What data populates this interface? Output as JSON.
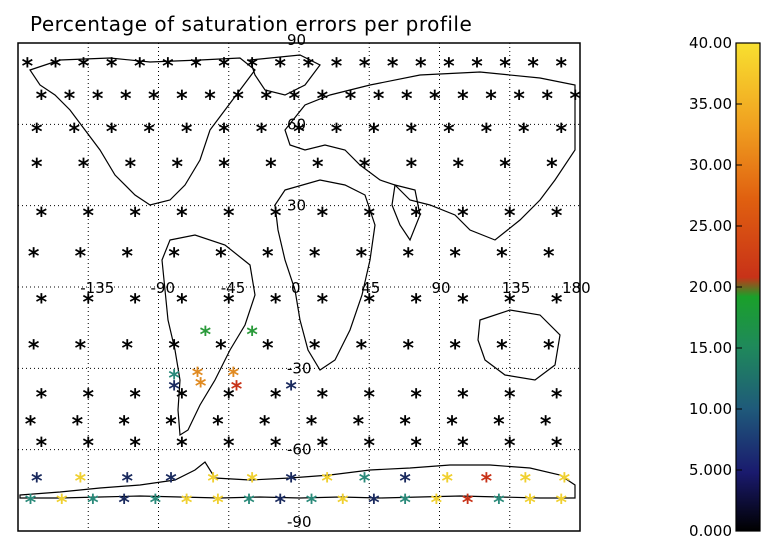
{
  "title": "Percentage of saturation errors per profile",
  "map": {
    "lon_labels": [
      "-135",
      "-90",
      "-45",
      "0",
      "45",
      "90",
      "135",
      "180"
    ],
    "lat_labels": [
      "90",
      "60",
      "30",
      "-30",
      "-60",
      "-90"
    ],
    "land_color": "#ffffff",
    "grid_style": "dotted"
  },
  "colorbar": {
    "ticks": [
      "40.00",
      "35.00",
      "30.00",
      "25.00",
      "20.00",
      "15.00",
      "10.00",
      "5.000",
      "0.000"
    ],
    "colors": [
      "#000000",
      "#1a1a6e",
      "#1f5a7a",
      "#1f8a5a",
      "#1aa02a",
      "#c83218",
      "#e06010",
      "#f0a020",
      "#f8e030"
    ]
  },
  "marker_colors": {
    "black": "#000000",
    "navy": "#1a2a5e",
    "teal": "#2a8a7a",
    "green": "#2a9a3a",
    "red": "#c83218",
    "orange": "#e08a20",
    "yellow": "#f0d030"
  }
}
